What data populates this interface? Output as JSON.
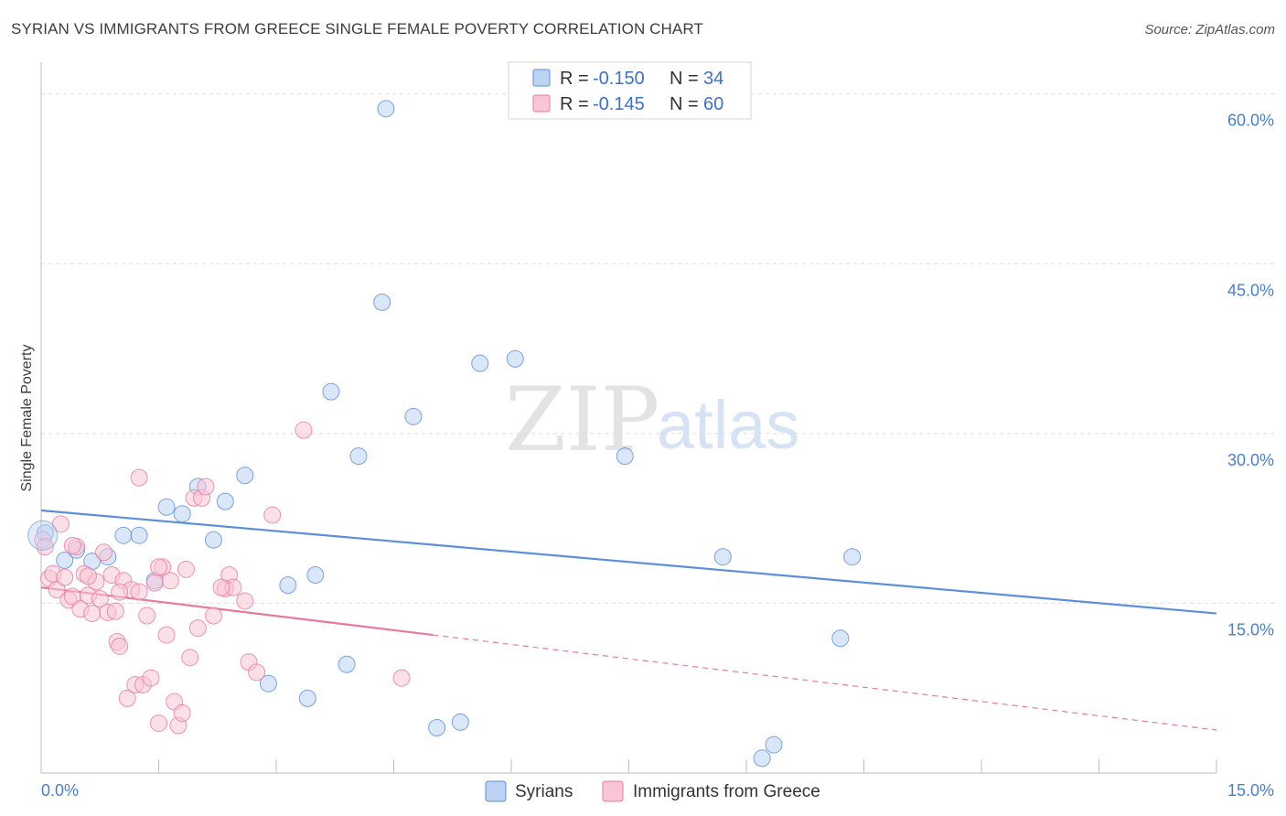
{
  "title": "SYRIAN VS IMMIGRANTS FROM GREECE SINGLE FEMALE POVERTY CORRELATION CHART",
  "source": "Source: ZipAtlas.com",
  "watermark": {
    "zip": "ZIP",
    "atlas": "atlas"
  },
  "legend": {
    "r_label": "R =",
    "n_label": "N =",
    "rows": [
      {
        "r": "-0.150",
        "n": "34",
        "color": "#5b8fdc",
        "fill": "#bcd3f3"
      },
      {
        "r": "-0.145",
        "n": "60",
        "color": "#e8799d",
        "fill": "#f8c6d6"
      }
    ]
  },
  "chart_data": {
    "type": "scatter",
    "title": "SYRIAN VS IMMIGRANTS FROM GREECE SINGLE FEMALE POVERTY CORRELATION CHART",
    "xlabel": "",
    "ylabel": "Single Female Poverty",
    "xlim": [
      0,
      15
    ],
    "ylim": [
      0,
      62
    ],
    "y_ticks": [
      {
        "value": 15,
        "label": "15.0%"
      },
      {
        "value": 30,
        "label": "30.0%"
      },
      {
        "value": 45,
        "label": "45.0%"
      },
      {
        "value": 60,
        "label": "60.0%"
      }
    ],
    "x_tick_labels": [
      {
        "value": 0,
        "label": "0.0%"
      },
      {
        "value": 15,
        "label": "15.0%"
      }
    ],
    "x_minor_ticks": [
      1.5,
      3.0,
      4.5,
      6.0,
      7.5,
      9.0,
      10.5,
      12.0,
      13.5,
      15.0
    ],
    "grid": true,
    "legend_position": "top-center",
    "series": [
      {
        "name": "Syrians",
        "color": "#5b8fdc",
        "fill": "#bcd3f3",
        "trend": {
          "x0": 0,
          "y0": 23.2,
          "x1": 15,
          "y1": 14.1,
          "dashed_from": null
        },
        "points": [
          [
            0.05,
            21.2
          ],
          [
            0.3,
            18.8
          ],
          [
            0.45,
            19.7
          ],
          [
            0.65,
            18.7
          ],
          [
            0.85,
            19.1
          ],
          [
            1.05,
            21.0
          ],
          [
            1.25,
            21.0
          ],
          [
            1.45,
            17.0
          ],
          [
            1.6,
            23.5
          ],
          [
            1.8,
            22.9
          ],
          [
            2.0,
            25.3
          ],
          [
            2.2,
            20.6
          ],
          [
            2.35,
            24.0
          ],
          [
            2.6,
            26.3
          ],
          [
            2.9,
            7.9
          ],
          [
            3.15,
            16.6
          ],
          [
            3.4,
            6.6
          ],
          [
            3.5,
            17.5
          ],
          [
            3.7,
            33.7
          ],
          [
            3.9,
            9.6
          ],
          [
            4.05,
            28.0
          ],
          [
            4.35,
            41.6
          ],
          [
            4.4,
            58.7
          ],
          [
            4.75,
            31.5
          ],
          [
            5.05,
            4.0
          ],
          [
            5.35,
            4.5
          ],
          [
            5.6,
            36.2
          ],
          [
            6.05,
            36.6
          ],
          [
            7.45,
            28.0
          ],
          [
            8.7,
            19.1
          ],
          [
            9.35,
            2.5
          ],
          [
            9.2,
            1.3
          ],
          [
            10.2,
            11.9
          ],
          [
            10.35,
            19.1
          ]
        ]
      },
      {
        "name": "Immigrants from Greece",
        "color": "#e8799d",
        "fill": "#f8c6d6",
        "trend": {
          "x0": 0,
          "y0": 16.4,
          "x1": 15,
          "y1": 3.8,
          "dashed_from": 5.0
        },
        "points": [
          [
            0.02,
            20.6
          ],
          [
            0.05,
            20.0
          ],
          [
            0.1,
            17.2
          ],
          [
            0.15,
            17.6
          ],
          [
            0.2,
            16.2
          ],
          [
            0.25,
            22.0
          ],
          [
            0.3,
            17.3
          ],
          [
            0.35,
            15.3
          ],
          [
            0.4,
            15.6
          ],
          [
            0.45,
            20.0
          ],
          [
            0.5,
            14.5
          ],
          [
            0.55,
            17.6
          ],
          [
            0.6,
            15.7
          ],
          [
            0.65,
            14.1
          ],
          [
            0.7,
            16.9
          ],
          [
            0.75,
            15.4
          ],
          [
            0.8,
            19.5
          ],
          [
            0.85,
            14.2
          ],
          [
            0.9,
            17.5
          ],
          [
            0.95,
            14.3
          ],
          [
            0.97,
            11.6
          ],
          [
            1.0,
            11.2
          ],
          [
            1.05,
            17.0
          ],
          [
            1.1,
            6.6
          ],
          [
            1.15,
            16.2
          ],
          [
            1.2,
            7.8
          ],
          [
            1.25,
            16.0
          ],
          [
            1.3,
            7.8
          ],
          [
            1.35,
            13.9
          ],
          [
            1.4,
            8.4
          ],
          [
            1.45,
            16.8
          ],
          [
            1.5,
            4.4
          ],
          [
            1.55,
            18.2
          ],
          [
            1.6,
            12.2
          ],
          [
            1.65,
            17.0
          ],
          [
            1.7,
            6.3
          ],
          [
            1.75,
            4.2
          ],
          [
            1.8,
            5.3
          ],
          [
            1.85,
            18.0
          ],
          [
            1.9,
            10.2
          ],
          [
            1.95,
            24.3
          ],
          [
            2.0,
            12.8
          ],
          [
            2.05,
            24.3
          ],
          [
            2.1,
            25.3
          ],
          [
            2.2,
            13.9
          ],
          [
            2.35,
            16.3
          ],
          [
            2.4,
            17.5
          ],
          [
            2.45,
            16.4
          ],
          [
            2.6,
            15.2
          ],
          [
            2.65,
            9.8
          ],
          [
            2.75,
            8.9
          ],
          [
            2.95,
            22.8
          ],
          [
            3.35,
            30.3
          ],
          [
            4.6,
            8.4
          ],
          [
            1.25,
            26.1
          ],
          [
            0.4,
            20.1
          ],
          [
            0.6,
            17.4
          ],
          [
            1.0,
            16.0
          ],
          [
            1.5,
            18.2
          ],
          [
            2.3,
            16.4
          ]
        ]
      }
    ]
  }
}
